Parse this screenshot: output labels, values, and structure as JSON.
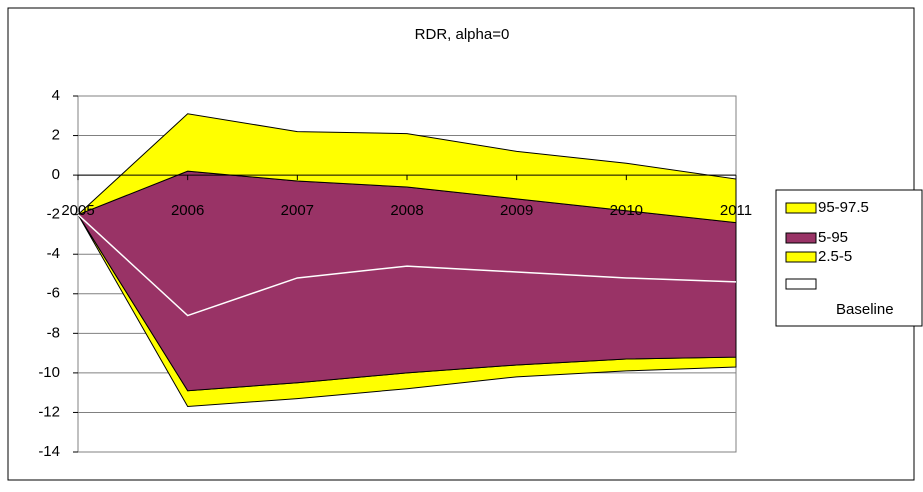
{
  "chart_data": {
    "type": "area",
    "title": "RDR, alpha=0",
    "categories": [
      "2005",
      "2006",
      "2007",
      "2008",
      "2009",
      "2010",
      "2011"
    ],
    "series": [
      {
        "name": "95-97.5",
        "color": "#ffff00",
        "lower": [
          -2,
          0.2,
          -0.3,
          -0.6,
          -1.2,
          -1.8,
          -2.4
        ],
        "upper": [
          -2,
          3.1,
          2.2,
          2.1,
          1.2,
          0.6,
          -0.2
        ]
      },
      {
        "name": "5-95",
        "color": "#993366",
        "lower": [
          -2,
          -10.9,
          -10.5,
          -10.0,
          -9.6,
          -9.3,
          -9.2
        ],
        "upper": [
          -2,
          0.2,
          -0.3,
          -0.6,
          -1.2,
          -1.8,
          -2.4
        ]
      },
      {
        "name": "2.5-5",
        "color": "#ffff00",
        "lower": [
          -2,
          -11.7,
          -11.3,
          -10.8,
          -10.2,
          -9.9,
          -9.7
        ],
        "upper": [
          -2,
          -10.9,
          -10.5,
          -10.0,
          -9.6,
          -9.3,
          -9.2
        ]
      },
      {
        "name": "Baseline",
        "color": "#ffffff",
        "values": [
          -2,
          -7.1,
          -5.2,
          -4.6,
          -4.9,
          -5.2,
          -5.4
        ]
      }
    ],
    "ylim": [
      -14,
      4
    ],
    "yticks": [
      -14,
      -12,
      -10,
      -8,
      -6,
      -4,
      -2,
      0,
      2,
      4
    ],
    "grid": true
  }
}
